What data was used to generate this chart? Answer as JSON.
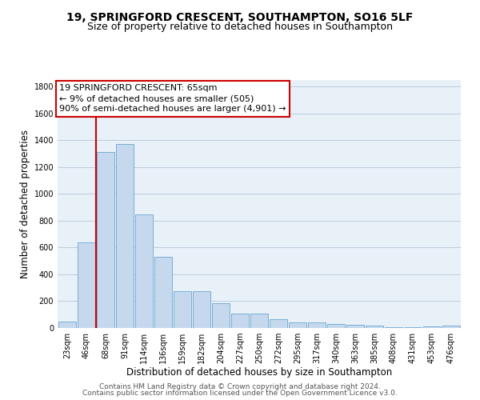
{
  "title_line1": "19, SPRINGFORD CRESCENT, SOUTHAMPTON, SO16 5LF",
  "title_line2": "Size of property relative to detached houses in Southampton",
  "xlabel": "Distribution of detached houses by size in Southampton",
  "ylabel": "Number of detached properties",
  "bar_color": "#c5d8ee",
  "bar_edge_color": "#7aafd4",
  "background_color": "#ffffff",
  "plot_bg_color": "#e8f0f8",
  "grid_color": "#bbccdd",
  "categories": [
    "23sqm",
    "46sqm",
    "68sqm",
    "91sqm",
    "114sqm",
    "136sqm",
    "159sqm",
    "182sqm",
    "204sqm",
    "227sqm",
    "250sqm",
    "272sqm",
    "295sqm",
    "317sqm",
    "340sqm",
    "363sqm",
    "385sqm",
    "408sqm",
    "431sqm",
    "453sqm",
    "476sqm"
  ],
  "values": [
    50,
    640,
    1310,
    1375,
    850,
    530,
    275,
    275,
    185,
    105,
    105,
    65,
    40,
    40,
    30,
    25,
    15,
    5,
    5,
    10,
    15
  ],
  "ylim": [
    0,
    1850
  ],
  "yticks": [
    0,
    200,
    400,
    600,
    800,
    1000,
    1200,
    1400,
    1600,
    1800
  ],
  "vline_color": "#cc0000",
  "vline_x": 1.5,
  "annotation_text_line1": "19 SPRINGFORD CRESCENT: 65sqm",
  "annotation_text_line2": "← 9% of detached houses are smaller (505)",
  "annotation_text_line3": "90% of semi-detached houses are larger (4,901) →",
  "annotation_box_edgecolor": "#cc0000",
  "annotation_box_facecolor": "#ffffff",
  "footer_line1": "Contains HM Land Registry data © Crown copyright and database right 2024.",
  "footer_line2": "Contains public sector information licensed under the Open Government Licence v3.0.",
  "title_fontsize": 10,
  "subtitle_fontsize": 9,
  "xlabel_fontsize": 8.5,
  "ylabel_fontsize": 8.5,
  "tick_fontsize": 7,
  "annotation_fontsize": 8,
  "footer_fontsize": 6.5
}
